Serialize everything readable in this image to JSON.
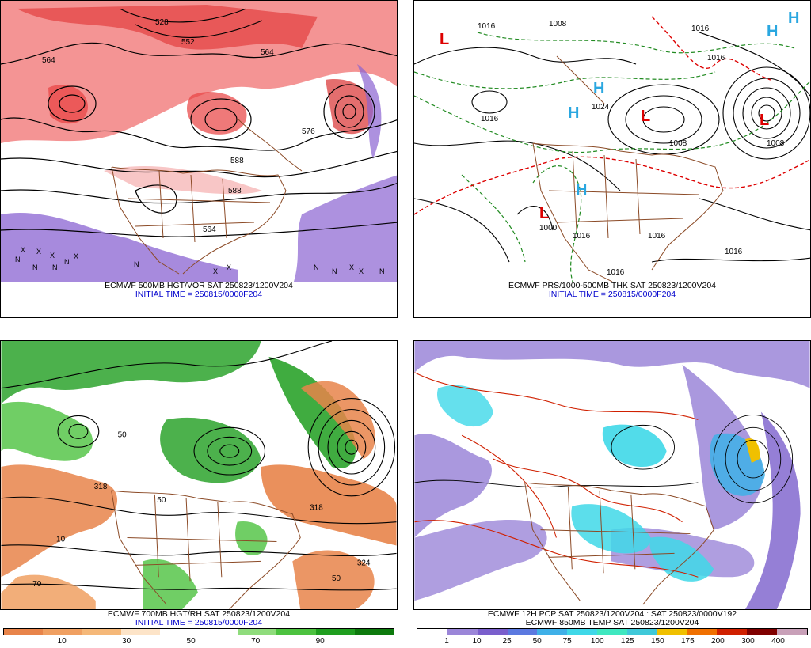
{
  "panels": [
    {
      "id": "p1",
      "caption_line1": "ECMWF 500MB HGT/VOR SAT 250823/1200V204",
      "caption_line2": "INITIAL TIME = 250815/0000F204",
      "contour_labels": [
        "528",
        "552",
        "564",
        "564",
        "576",
        "588",
        "588",
        "564"
      ],
      "symbol_labels": [
        "N",
        "X",
        "N",
        "X",
        "X",
        "N",
        "N",
        "X",
        "N",
        "X",
        "X",
        "N",
        "N",
        "X",
        "X",
        "N"
      ]
    },
    {
      "id": "p2",
      "caption_line1": "ECMWF PRS/1000-500MB THK SAT 250823/1200V204",
      "caption_line2": "INITIAL TIME = 250815/0000F204",
      "pressure_labels": [
        "1008",
        "1016",
        "1016",
        "1016",
        "1008",
        "1024",
        "1000",
        "1008",
        "1016",
        "1016",
        "1016",
        "1016",
        "1016"
      ],
      "centers": [
        {
          "letter": "L",
          "color": "#dd0000"
        },
        {
          "letter": "H",
          "color": "#2aa7e0"
        },
        {
          "letter": "H",
          "color": "#2aa7e0"
        },
        {
          "letter": "H",
          "color": "#2aa7e0"
        },
        {
          "letter": "L",
          "color": "#dd0000"
        },
        {
          "letter": "L",
          "color": "#dd0000"
        },
        {
          "letter": "H",
          "color": "#2aa7e0"
        },
        {
          "letter": "L",
          "color": "#dd0000"
        },
        {
          "letter": "H",
          "color": "#2aa7e0"
        }
      ]
    },
    {
      "id": "p3",
      "caption_line1": "ECMWF 700MB HGT/RH SAT 250823/1200V204",
      "caption_line2": "INITIAL TIME = 250815/0000F204",
      "scale_labels": [
        "10",
        "30",
        "50",
        "70",
        "90"
      ],
      "scale_colors": [
        "#e8844a",
        "#f0a062",
        "#f5b879",
        "#fde4c8",
        "#ffffff",
        "#ffffff",
        "#8fdc7c",
        "#4cc23f",
        "#1f9e1f",
        "#0d7a0d"
      ],
      "contour_labels": [
        "318",
        "318",
        "50",
        "50",
        "10",
        "70",
        "324",
        "50"
      ]
    },
    {
      "id": "p4",
      "caption_line1": "ECMWF 12H PCP SAT 250823/1200V204 : SAT 250823/0000V192",
      "caption_line2": "ECMWF 850MB TEMP SAT 250823/1200V204",
      "scale_labels": [
        "1",
        "10",
        "25",
        "50",
        "75",
        "100",
        "125",
        "150",
        "175",
        "200",
        "300",
        "400"
      ],
      "scale_colors": [
        "#ffffff",
        "#9b86d8",
        "#7a5fcc",
        "#5b79e0",
        "#3fb0e8",
        "#3fd8e8",
        "#3fe8c0",
        "#3fc9d9",
        "#f0c000",
        "#f07000",
        "#d02000",
        "#800000",
        "#c8a0b8"
      ]
    }
  ]
}
